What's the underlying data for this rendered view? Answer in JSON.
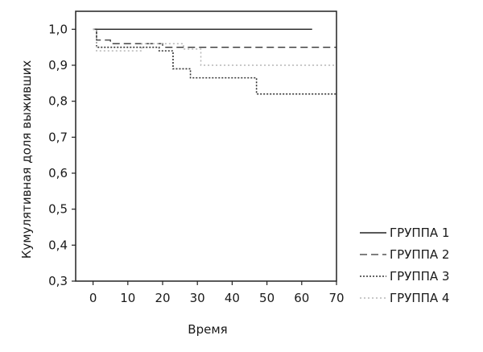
{
  "chart_data": {
    "type": "line",
    "step": true,
    "title": "",
    "xlabel": "Время",
    "ylabel": "Кумулятивная доля выживших",
    "xlim": [
      -5,
      70
    ],
    "ylim": [
      0.3,
      1.05
    ],
    "xticks": [
      0,
      10,
      20,
      30,
      40,
      50,
      60,
      70
    ],
    "yticks": [
      0.3,
      0.4,
      0.5,
      0.6,
      0.7,
      0.8,
      0.9,
      1.0
    ],
    "xtick_labels": [
      "0",
      "10",
      "20",
      "30",
      "40",
      "50",
      "60",
      "70"
    ],
    "ytick_labels": [
      "0,3",
      "0,4",
      "0,5",
      "0,6",
      "0,7",
      "0,8",
      "0,9",
      "1,0"
    ],
    "grid": false,
    "legend_position": "right-bottom",
    "series": [
      {
        "name": "ГРУППА 1",
        "style": "solid",
        "color": "#222222",
        "points": [
          [
            0,
            1.0
          ],
          [
            63,
            1.0
          ]
        ]
      },
      {
        "name": "ГРУППА 2",
        "style": "dashed",
        "color": "#333333",
        "points": [
          [
            0,
            1.0
          ],
          [
            1,
            0.97
          ],
          [
            5,
            0.96
          ],
          [
            20,
            0.95
          ],
          [
            70,
            0.95
          ]
        ]
      },
      {
        "name": "ГРУППА 3",
        "style": "dotted",
        "color": "#333333",
        "points": [
          [
            0,
            1.0
          ],
          [
            1,
            0.95
          ],
          [
            19,
            0.94
          ],
          [
            23,
            0.89
          ],
          [
            28,
            0.865
          ],
          [
            47,
            0.82
          ],
          [
            70,
            0.82
          ]
        ]
      },
      {
        "name": "ГРУППА 4",
        "style": "dotted-light",
        "color": "#b5b5b5",
        "points": [
          [
            0,
            1.0
          ],
          [
            1,
            0.94
          ],
          [
            5,
            0.94
          ],
          [
            14,
            0.96
          ],
          [
            26,
            0.945
          ],
          [
            31,
            0.9
          ],
          [
            70,
            0.9
          ]
        ]
      }
    ]
  }
}
